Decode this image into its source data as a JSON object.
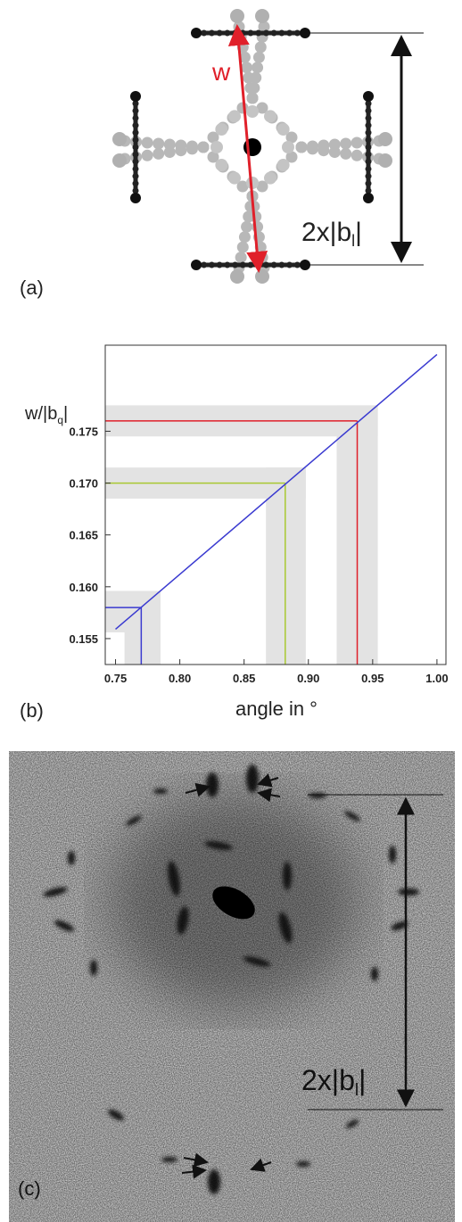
{
  "panel_a": {
    "label": "(a)",
    "width_label": "w",
    "distance_label": {
      "main": "2x|b",
      "sub": "l",
      "end": "|"
    }
  },
  "panel_b": {
    "label": "(b)"
  },
  "chart_data": {
    "type": "line",
    "ylabel": {
      "main": "w/|b",
      "sub": "q",
      "end": "|"
    },
    "xlabel": "angle in °",
    "x": [
      0.75,
      1.0
    ],
    "series": [
      {
        "color": "#3a3ad0",
        "values": [
          0.1559,
          0.1824
        ]
      }
    ],
    "markers": [
      {
        "x": 0.77,
        "y": 0.158,
        "color": "#3a3ad0",
        "x_band": [
          0.757,
          0.785
        ],
        "y_band": [
          0.1556,
          0.1596
        ]
      },
      {
        "x": 0.882,
        "y": 0.17,
        "color": "#a8c832",
        "x_band": [
          0.867,
          0.898
        ],
        "y_band": [
          0.1685,
          0.1715
        ]
      },
      {
        "x": 0.938,
        "y": 0.176,
        "color": "#e0202a",
        "x_band": [
          0.922,
          0.954
        ],
        "y_band": [
          0.1745,
          0.1775
        ]
      }
    ],
    "band_color": "#e3e3e3",
    "xlim": [
      0.742,
      1.007
    ],
    "ylim": [
      0.1525,
      0.1833
    ],
    "xticks": [
      0.75,
      {
        "value": 0.8,
        "label": "0.80"
      },
      0.85,
      {
        "value": 0.9,
        "label": "0.90"
      },
      0.95,
      {
        "value": 1,
        "label": "1.00"
      }
    ],
    "yticks": [
      0.155,
      {
        "value": 0.16,
        "label": "0.160"
      },
      0.165,
      {
        "value": 0.17,
        "label": "0.170"
      },
      0.175
    ],
    "grid": false
  },
  "panel_c": {
    "label": "(c)",
    "distance_label": {
      "main": "2x|b",
      "sub": "l",
      "end": "|"
    }
  }
}
